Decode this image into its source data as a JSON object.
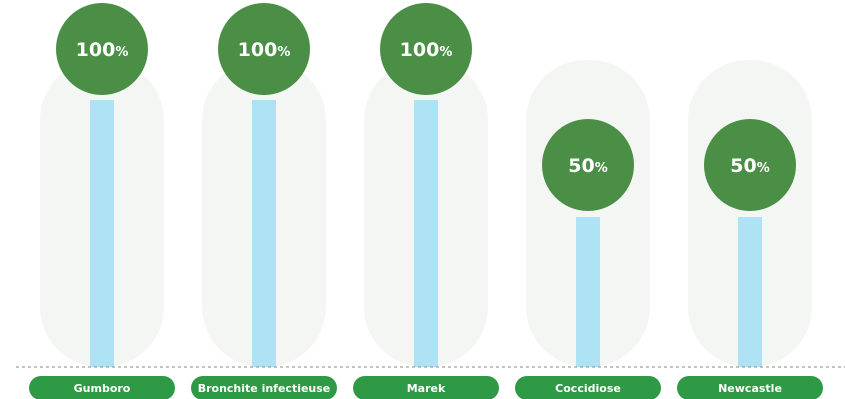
{
  "chart_data": {
    "type": "bar",
    "categories": [
      "Gumboro",
      "Bronchite infectieuse",
      "Marek",
      "Coccidiose",
      "Newcastle"
    ],
    "values": [
      100,
      100,
      100,
      50,
      50
    ],
    "unit": "%",
    "title": "",
    "xlabel": "",
    "ylabel": "",
    "ylim": [
      0,
      100
    ],
    "grid": false,
    "legend": "none",
    "colors": {
      "stem": "#ade3f5",
      "bubble": "#4a8f45",
      "category_pill": "#2f9a46",
      "label_text": "#ffffff",
      "baseline": "#8a8a8a"
    }
  }
}
